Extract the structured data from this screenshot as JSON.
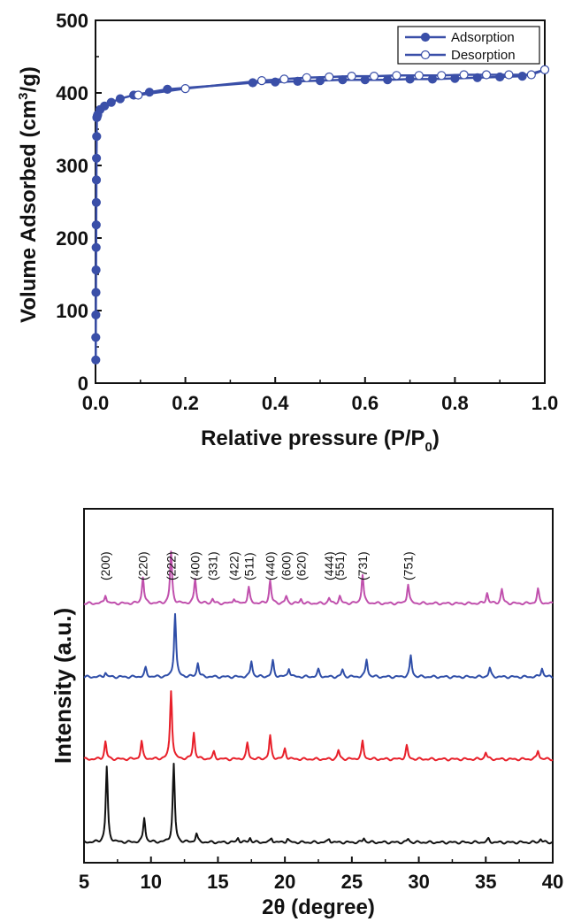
{
  "chart_data": [
    {
      "type": "line",
      "xlabel": "Relative pressure (P/P",
      "xlabel_sub": "0",
      "xlabel_end": ")",
      "ylabel": "Volume Adsorbed (cm",
      "ylabel_sup": "3",
      "ylabel_end": "/g)",
      "xlim": [
        0,
        1.0
      ],
      "ylim": [
        0,
        500
      ],
      "xticks": [
        "0.0",
        "0.2",
        "0.4",
        "0.6",
        "0.8",
        "1.0"
      ],
      "yticks": [
        "0",
        "100",
        "200",
        "300",
        "400",
        "500"
      ],
      "legend_position": "top-right",
      "colors": {
        "series": "#3a4fa8"
      },
      "series": [
        {
          "name": "Adsorption",
          "marker": "filled-circle",
          "x": [
            0.0005,
            0.0006,
            0.0008,
            0.001,
            0.0012,
            0.0014,
            0.0016,
            0.0018,
            0.002,
            0.0022,
            0.0025,
            0.003,
            0.004,
            0.005,
            0.01,
            0.02,
            0.035,
            0.055,
            0.085,
            0.12,
            0.16,
            0.35,
            0.4,
            0.45,
            0.5,
            0.55,
            0.6,
            0.65,
            0.7,
            0.75,
            0.8,
            0.85,
            0.9,
            0.95,
            1.0
          ],
          "y": [
            32,
            63,
            94,
            125,
            156,
            187,
            218,
            249,
            280,
            310,
            340,
            366,
            368,
            370,
            377,
            382,
            387,
            392,
            397,
            401,
            405,
            414,
            415,
            416,
            417,
            418,
            418,
            418,
            419,
            419,
            420,
            421,
            422,
            423,
            432
          ]
        },
        {
          "name": "Desorption",
          "marker": "open-circle",
          "x": [
            1.0,
            0.97,
            0.92,
            0.87,
            0.82,
            0.77,
            0.72,
            0.67,
            0.62,
            0.57,
            0.52,
            0.47,
            0.42,
            0.37,
            0.2,
            0.095
          ],
          "y": [
            432,
            425,
            425,
            425,
            425,
            424,
            424,
            424,
            423,
            423,
            422,
            421,
            419,
            417,
            406,
            397
          ]
        }
      ]
    },
    {
      "type": "line",
      "xlabel": "2θ (degree)",
      "ylabel": "Intensity (a.u.)",
      "xlim": [
        5,
        40
      ],
      "xticks": [
        "5",
        "10",
        "15",
        "20",
        "25",
        "30",
        "35",
        "40"
      ],
      "peak_labels": [
        {
          "text": "(200)",
          "x": 6.6
        },
        {
          "text": "(220)",
          "x": 9.4
        },
        {
          "text": "(222)",
          "x": 11.5
        },
        {
          "text": "(400)",
          "x": 13.3
        },
        {
          "text": "(331)",
          "x": 14.6
        },
        {
          "text": "(422)",
          "x": 16.2
        },
        {
          "text": "(511)",
          "x": 17.3
        },
        {
          "text": "(440)",
          "x": 18.9
        },
        {
          "text": "(600)",
          "x": 20.1
        },
        {
          "text": "(620)",
          "x": 21.2
        },
        {
          "text": "(444)",
          "x": 23.3
        },
        {
          "text": "(551)",
          "x": 24.1
        },
        {
          "text": "(731)",
          "x": 25.8
        },
        {
          "text": "(751)",
          "x": 29.2
        }
      ],
      "series": [
        {
          "color": "#c050ad",
          "baseline": 1.0,
          "peaks": [
            [
              6.6,
              10
            ],
            [
              9.4,
              30
            ],
            [
              11.5,
              58
            ],
            [
              13.3,
              28
            ],
            [
              14.6,
              5
            ],
            [
              16.2,
              6
            ],
            [
              17.3,
              18
            ],
            [
              18.9,
              26
            ],
            [
              20.1,
              8
            ],
            [
              21.2,
              5
            ],
            [
              23.3,
              6
            ],
            [
              24.1,
              8
            ],
            [
              25.8,
              33
            ],
            [
              29.2,
              22
            ],
            [
              35.1,
              12
            ],
            [
              36.2,
              16
            ],
            [
              38.9,
              16
            ]
          ]
        },
        {
          "color": "#2f4ea8",
          "baseline": 0.0,
          "peaks": [
            [
              6.6,
              5
            ],
            [
              9.6,
              10
            ],
            [
              11.8,
              72
            ],
            [
              13.5,
              16
            ],
            [
              17.5,
              18
            ],
            [
              19.1,
              18
            ],
            [
              20.3,
              10
            ],
            [
              22.5,
              8
            ],
            [
              24.3,
              8
            ],
            [
              26.1,
              20
            ],
            [
              29.4,
              24
            ],
            [
              35.3,
              10
            ],
            [
              39.2,
              10
            ]
          ]
        },
        {
          "color": "#e8202a",
          "baseline": 0.0,
          "peaks": [
            [
              6.6,
              20
            ],
            [
              9.3,
              20
            ],
            [
              11.5,
              78
            ],
            [
              13.2,
              30
            ],
            [
              14.7,
              8
            ],
            [
              17.2,
              18
            ],
            [
              18.9,
              26
            ],
            [
              20.0,
              12
            ],
            [
              24.0,
              10
            ],
            [
              25.8,
              20
            ],
            [
              29.1,
              15
            ],
            [
              35.0,
              8
            ],
            [
              38.9,
              10
            ]
          ]
        },
        {
          "color": "#111111",
          "baseline": 0.0,
          "peaks": [
            [
              6.7,
              85
            ],
            [
              9.5,
              28
            ],
            [
              11.7,
              88
            ],
            [
              13.4,
              10
            ],
            [
              16.5,
              5
            ],
            [
              17.4,
              5
            ],
            [
              19.0,
              5
            ],
            [
              20.2,
              4
            ],
            [
              23.3,
              4
            ],
            [
              25.9,
              5
            ],
            [
              29.2,
              4
            ],
            [
              35.2,
              4
            ],
            [
              39.1,
              4
            ]
          ]
        }
      ]
    }
  ]
}
